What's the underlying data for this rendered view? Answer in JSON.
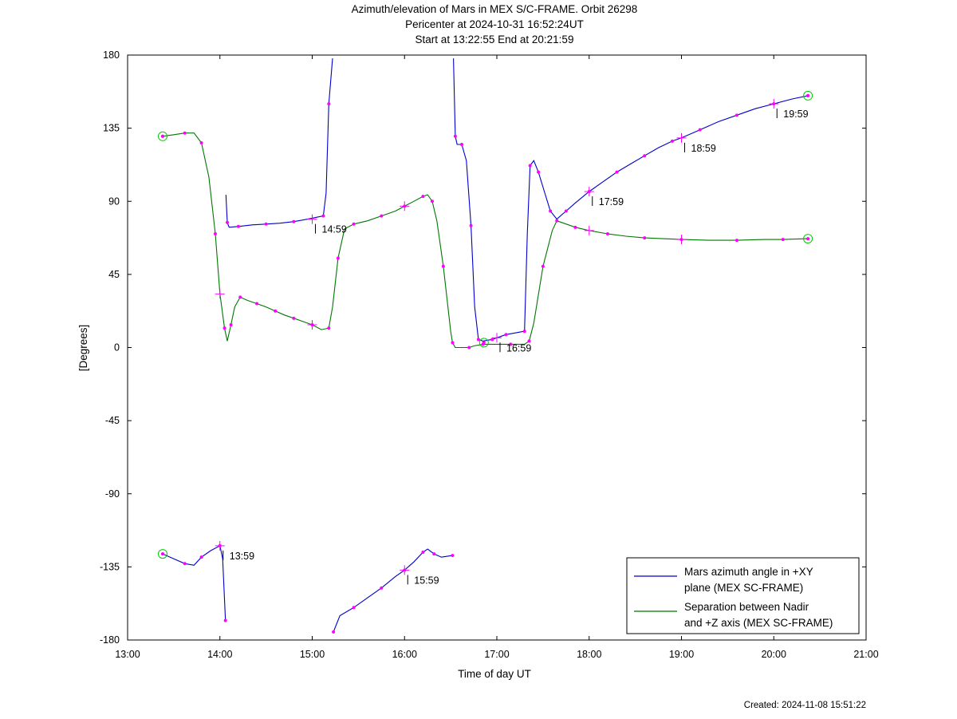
{
  "chart_data": {
    "type": "line",
    "title": "Azimuth/elevation of Mars in MEX S/C-FRAME.  Orbit 26298",
    "subtitle_lines": [
      "Pericenter at 2024-10-31 16:52:24UT",
      "Start at 13:22:55 End at 20:21:59"
    ],
    "xlabel": "Time of day UT",
    "ylabel": "[Degrees]",
    "xlim": [
      13.0,
      21.0
    ],
    "ylim": [
      -180,
      180
    ],
    "x_ticks": [
      "13:00",
      "14:00",
      "15:00",
      "16:00",
      "17:00",
      "18:00",
      "19:00",
      "20:00",
      "21:00"
    ],
    "y_ticks": [
      "180",
      "135",
      "90",
      "45",
      "0",
      "-45",
      "-90",
      "-135",
      "-180"
    ],
    "legend_position": "bottom-right",
    "series": [
      {
        "name": "Mars azimuth angle in +XY plane (MEX SC-FRAME)",
        "legend_lines": [
          "Mars azimuth angle in +XY",
          "plane (MEX SC-FRAME)"
        ],
        "color": "#0000cc",
        "points": [
          [
            13.38,
            -127
          ],
          [
            13.5,
            -130
          ],
          [
            13.62,
            -133
          ],
          [
            13.72,
            -134
          ],
          [
            13.8,
            -129
          ],
          [
            13.9,
            -125
          ],
          [
            14.0,
            -122
          ],
          [
            14.03,
            -130
          ],
          [
            14.06,
            -168
          ],
          [
            14.065,
            94
          ],
          [
            14.08,
            77
          ],
          [
            14.1,
            74
          ],
          [
            14.2,
            74.5
          ],
          [
            14.35,
            75.5
          ],
          [
            14.5,
            76
          ],
          [
            14.65,
            76.5
          ],
          [
            14.8,
            77.5
          ],
          [
            14.95,
            79
          ],
          [
            15.12,
            81
          ],
          [
            15.15,
            95
          ],
          [
            15.18,
            150
          ],
          [
            15.22,
            178
          ],
          [
            15.23,
            -175
          ],
          [
            15.3,
            -165
          ],
          [
            15.45,
            -160
          ],
          [
            15.6,
            -154
          ],
          [
            15.75,
            -148
          ],
          [
            15.9,
            -141
          ],
          [
            16.0,
            -137
          ],
          [
            16.1,
            -132
          ],
          [
            16.2,
            -126
          ],
          [
            16.25,
            -124
          ],
          [
            16.32,
            -127
          ],
          [
            16.4,
            -129
          ],
          [
            16.52,
            -128
          ],
          [
            16.53,
            178
          ],
          [
            16.55,
            130
          ],
          [
            16.57,
            125
          ],
          [
            16.62,
            125
          ],
          [
            16.67,
            115
          ],
          [
            16.72,
            75
          ],
          [
            16.76,
            25
          ],
          [
            16.8,
            5
          ],
          [
            16.85,
            4
          ],
          [
            16.95,
            5
          ],
          [
            17.0,
            6
          ],
          [
            17.1,
            8
          ],
          [
            17.2,
            9
          ],
          [
            17.3,
            10
          ],
          [
            17.33,
            70
          ],
          [
            17.36,
            112
          ],
          [
            17.4,
            115
          ],
          [
            17.45,
            108
          ],
          [
            17.52,
            95
          ],
          [
            17.58,
            84
          ],
          [
            17.65,
            79
          ],
          [
            17.75,
            84
          ],
          [
            17.85,
            89
          ],
          [
            18.0,
            96
          ],
          [
            18.15,
            102
          ],
          [
            18.3,
            108
          ],
          [
            18.45,
            113
          ],
          [
            18.6,
            118
          ],
          [
            18.75,
            123
          ],
          [
            18.9,
            127
          ],
          [
            19.0,
            129
          ],
          [
            19.2,
            134
          ],
          [
            19.4,
            139
          ],
          [
            19.6,
            143
          ],
          [
            19.8,
            147
          ],
          [
            20.0,
            150
          ],
          [
            20.2,
            153
          ],
          [
            20.37,
            155
          ]
        ]
      },
      {
        "name": "Separation between Nadir and +Z axis (MEX SC-FRAME)",
        "legend_lines": [
          "Separation between Nadir",
          "and +Z axis (MEX SC-FRAME)"
        ],
        "color": "#007700",
        "points": [
          [
            13.38,
            130
          ],
          [
            13.5,
            131
          ],
          [
            13.62,
            132
          ],
          [
            13.72,
            132
          ],
          [
            13.8,
            126
          ],
          [
            13.88,
            105
          ],
          [
            13.95,
            70
          ],
          [
            14.0,
            33
          ],
          [
            14.05,
            12
          ],
          [
            14.08,
            4
          ],
          [
            14.12,
            14
          ],
          [
            14.16,
            25
          ],
          [
            14.22,
            31
          ],
          [
            14.3,
            29
          ],
          [
            14.4,
            27
          ],
          [
            14.5,
            25
          ],
          [
            14.6,
            22.5
          ],
          [
            14.7,
            20
          ],
          [
            14.8,
            18
          ],
          [
            14.9,
            16
          ],
          [
            15.0,
            14
          ],
          [
            15.1,
            11
          ],
          [
            15.18,
            12
          ],
          [
            15.22,
            25
          ],
          [
            15.28,
            55
          ],
          [
            15.35,
            73
          ],
          [
            15.45,
            76
          ],
          [
            15.6,
            78
          ],
          [
            15.75,
            81
          ],
          [
            15.9,
            84
          ],
          [
            16.0,
            87
          ],
          [
            16.1,
            90
          ],
          [
            16.2,
            93
          ],
          [
            16.25,
            94
          ],
          [
            16.3,
            90
          ],
          [
            16.35,
            78
          ],
          [
            16.42,
            50
          ],
          [
            16.5,
            10
          ],
          [
            16.52,
            3
          ],
          [
            16.55,
            0
          ],
          [
            16.7,
            0
          ],
          [
            16.75,
            1
          ],
          [
            16.85,
            2
          ],
          [
            17.0,
            2
          ],
          [
            17.15,
            2
          ],
          [
            17.3,
            2
          ],
          [
            17.35,
            4
          ],
          [
            17.4,
            15
          ],
          [
            17.5,
            50
          ],
          [
            17.6,
            72
          ],
          [
            17.65,
            78
          ],
          [
            17.7,
            77
          ],
          [
            17.85,
            74
          ],
          [
            18.0,
            72
          ],
          [
            18.2,
            70
          ],
          [
            18.4,
            68.5
          ],
          [
            18.6,
            67.5
          ],
          [
            18.8,
            67
          ],
          [
            19.0,
            66.5
          ],
          [
            19.3,
            66
          ],
          [
            19.6,
            66
          ],
          [
            19.9,
            66.5
          ],
          [
            20.1,
            66.5
          ],
          [
            20.37,
            67
          ]
        ]
      }
    ],
    "time_annotations": [
      {
        "x": 14.0,
        "y": -122,
        "label": "13:59"
      },
      {
        "x": 15.0,
        "y": 79,
        "label": "14:59"
      },
      {
        "x": 16.0,
        "y": -137,
        "label": "15:59"
      },
      {
        "x": 17.0,
        "y": 6,
        "label": "16:59"
      },
      {
        "x": 18.0,
        "y": 96,
        "label": "17:59"
      },
      {
        "x": 19.0,
        "y": 129,
        "label": "18:59"
      },
      {
        "x": 20.0,
        "y": 150,
        "label": "19:59"
      }
    ],
    "circle_markers": [
      [
        13.38,
        -127
      ],
      [
        13.38,
        130
      ],
      [
        20.37,
        155
      ],
      [
        20.37,
        67
      ],
      [
        16.86,
        3
      ]
    ],
    "marker_color": "#ff00ff",
    "circle_color": "#00cc00"
  },
  "footer": {
    "created": "Created: 2024-11-08 15:51:22"
  }
}
